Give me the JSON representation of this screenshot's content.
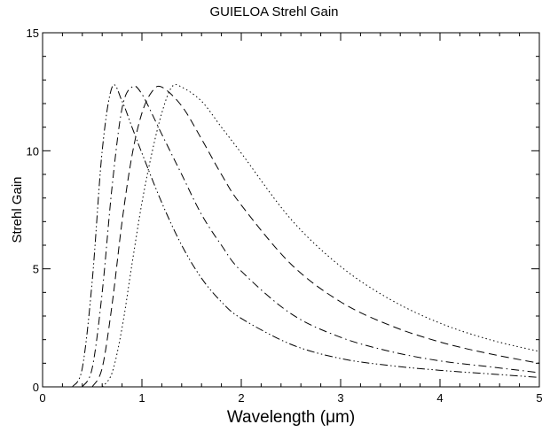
{
  "chart_data": {
    "type": "line",
    "title": "GUIELOA Strehl Gain",
    "xlabel": "Wavelength (μm)",
    "ylabel": "Strehl Gain",
    "xlim": [
      0,
      5
    ],
    "ylim": [
      0,
      15
    ],
    "xticks": [
      "0",
      "1",
      "2",
      "3",
      "4",
      "5"
    ],
    "yticks": [
      "0",
      "5",
      "10",
      "15"
    ],
    "grid": false,
    "legend": "none",
    "line_color": "#000000",
    "series": [
      {
        "line_style": "dash-dot-dot",
        "points": [
          [
            0.3,
            0
          ],
          [
            0.4,
            0.8
          ],
          [
            0.5,
            4.5
          ],
          [
            0.6,
            10.0
          ],
          [
            0.7,
            12.7
          ],
          [
            0.8,
            12.1
          ],
          [
            0.9,
            11.0
          ],
          [
            1.0,
            9.9
          ],
          [
            1.2,
            7.8
          ],
          [
            1.4,
            6.0
          ],
          [
            1.6,
            4.6
          ],
          [
            1.8,
            3.6
          ],
          [
            2.0,
            2.9
          ],
          [
            2.5,
            1.8
          ],
          [
            3.0,
            1.2
          ],
          [
            3.5,
            0.9
          ],
          [
            4.0,
            0.7
          ],
          [
            4.5,
            0.55
          ],
          [
            5.0,
            0.4
          ]
        ]
      },
      {
        "line_style": "dash-dot",
        "points": [
          [
            0.4,
            0
          ],
          [
            0.5,
            0.8
          ],
          [
            0.6,
            4.0
          ],
          [
            0.7,
            8.5
          ],
          [
            0.8,
            11.8
          ],
          [
            0.9,
            12.7
          ],
          [
            1.0,
            12.4
          ],
          [
            1.2,
            10.7
          ],
          [
            1.4,
            9.0
          ],
          [
            1.6,
            7.3
          ],
          [
            1.8,
            6.0
          ],
          [
            2.0,
            4.9
          ],
          [
            2.5,
            3.1
          ],
          [
            3.0,
            2.1
          ],
          [
            3.5,
            1.5
          ],
          [
            4.0,
            1.1
          ],
          [
            4.5,
            0.85
          ],
          [
            5.0,
            0.6
          ]
        ]
      },
      {
        "line_style": "dashed",
        "points": [
          [
            0.5,
            0
          ],
          [
            0.6,
            0.8
          ],
          [
            0.7,
            3.5
          ],
          [
            0.8,
            7.0
          ],
          [
            0.9,
            9.8
          ],
          [
            1.0,
            11.6
          ],
          [
            1.1,
            12.5
          ],
          [
            1.2,
            12.7
          ],
          [
            1.4,
            11.9
          ],
          [
            1.6,
            10.5
          ],
          [
            1.8,
            9.0
          ],
          [
            2.0,
            7.7
          ],
          [
            2.5,
            5.2
          ],
          [
            3.0,
            3.6
          ],
          [
            3.5,
            2.6
          ],
          [
            4.0,
            1.9
          ],
          [
            4.5,
            1.4
          ],
          [
            5.0,
            1.0
          ]
        ]
      },
      {
        "line_style": "dotted",
        "points": [
          [
            0.6,
            0
          ],
          [
            0.7,
            0.6
          ],
          [
            0.8,
            2.5
          ],
          [
            0.9,
            5.2
          ],
          [
            1.0,
            7.8
          ],
          [
            1.1,
            9.9
          ],
          [
            1.2,
            11.6
          ],
          [
            1.3,
            12.7
          ],
          [
            1.4,
            12.7
          ],
          [
            1.6,
            12.1
          ],
          [
            1.8,
            11.0
          ],
          [
            2.0,
            9.9
          ],
          [
            2.5,
            7.1
          ],
          [
            3.0,
            5.1
          ],
          [
            3.5,
            3.7
          ],
          [
            4.0,
            2.7
          ],
          [
            4.5,
            2.0
          ],
          [
            5.0,
            1.5
          ]
        ]
      }
    ]
  }
}
